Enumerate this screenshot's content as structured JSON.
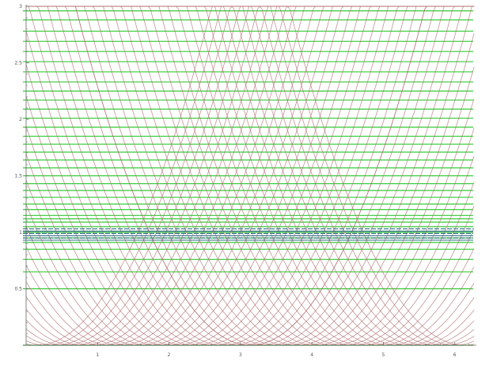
{
  "chart_data": {
    "type": "line",
    "title": "",
    "xlabel": "",
    "ylabel": "",
    "xlim": [
      0,
      6.28
    ],
    "ylim": [
      0,
      3
    ],
    "grid": false,
    "legend": "none",
    "x_ticks": [
      "1",
      "2",
      "3",
      "4",
      "5",
      "6"
    ],
    "x_tick_values": [
      1,
      2,
      3,
      4,
      5,
      6
    ],
    "y_ticks": [
      "0.5",
      "1",
      "1.5",
      "2",
      "2.5",
      "3"
    ],
    "y_tick_values": [
      0.5,
      1,
      1.5,
      2,
      2.5,
      3
    ],
    "colors": {
      "level_lines": "#33cc33",
      "crossing_curves": "#b07070",
      "dense_band": "#2f6e8a",
      "axes": "#666666"
    },
    "series": [
      {
        "kind": "horizontal_levels",
        "x_range": [
          0,
          6.28
        ],
        "y_values": [
          0,
          0.5,
          0.65,
          0.76,
          0.85,
          0.91,
          0.95,
          1.0,
          1.05,
          1.09,
          1.12,
          1.15,
          1.2,
          1.25,
          1.31,
          1.37,
          1.43,
          1.5,
          1.57,
          1.64,
          1.71,
          1.78,
          1.85,
          1.93,
          2.01,
          2.09,
          2.17,
          2.25,
          2.33,
          2.42,
          2.51,
          2.6,
          2.69,
          2.78,
          2.88,
          2.96
        ]
      },
      {
        "kind": "dense_band",
        "y_values": [
          0.93,
          0.95,
          0.97,
          0.99,
          1.01,
          1.03
        ]
      },
      {
        "kind": "crossing_curves",
        "center_x": 3.14,
        "curvature": 0.5,
        "count_per_side": 24,
        "spacing": 0.13
      }
    ]
  }
}
